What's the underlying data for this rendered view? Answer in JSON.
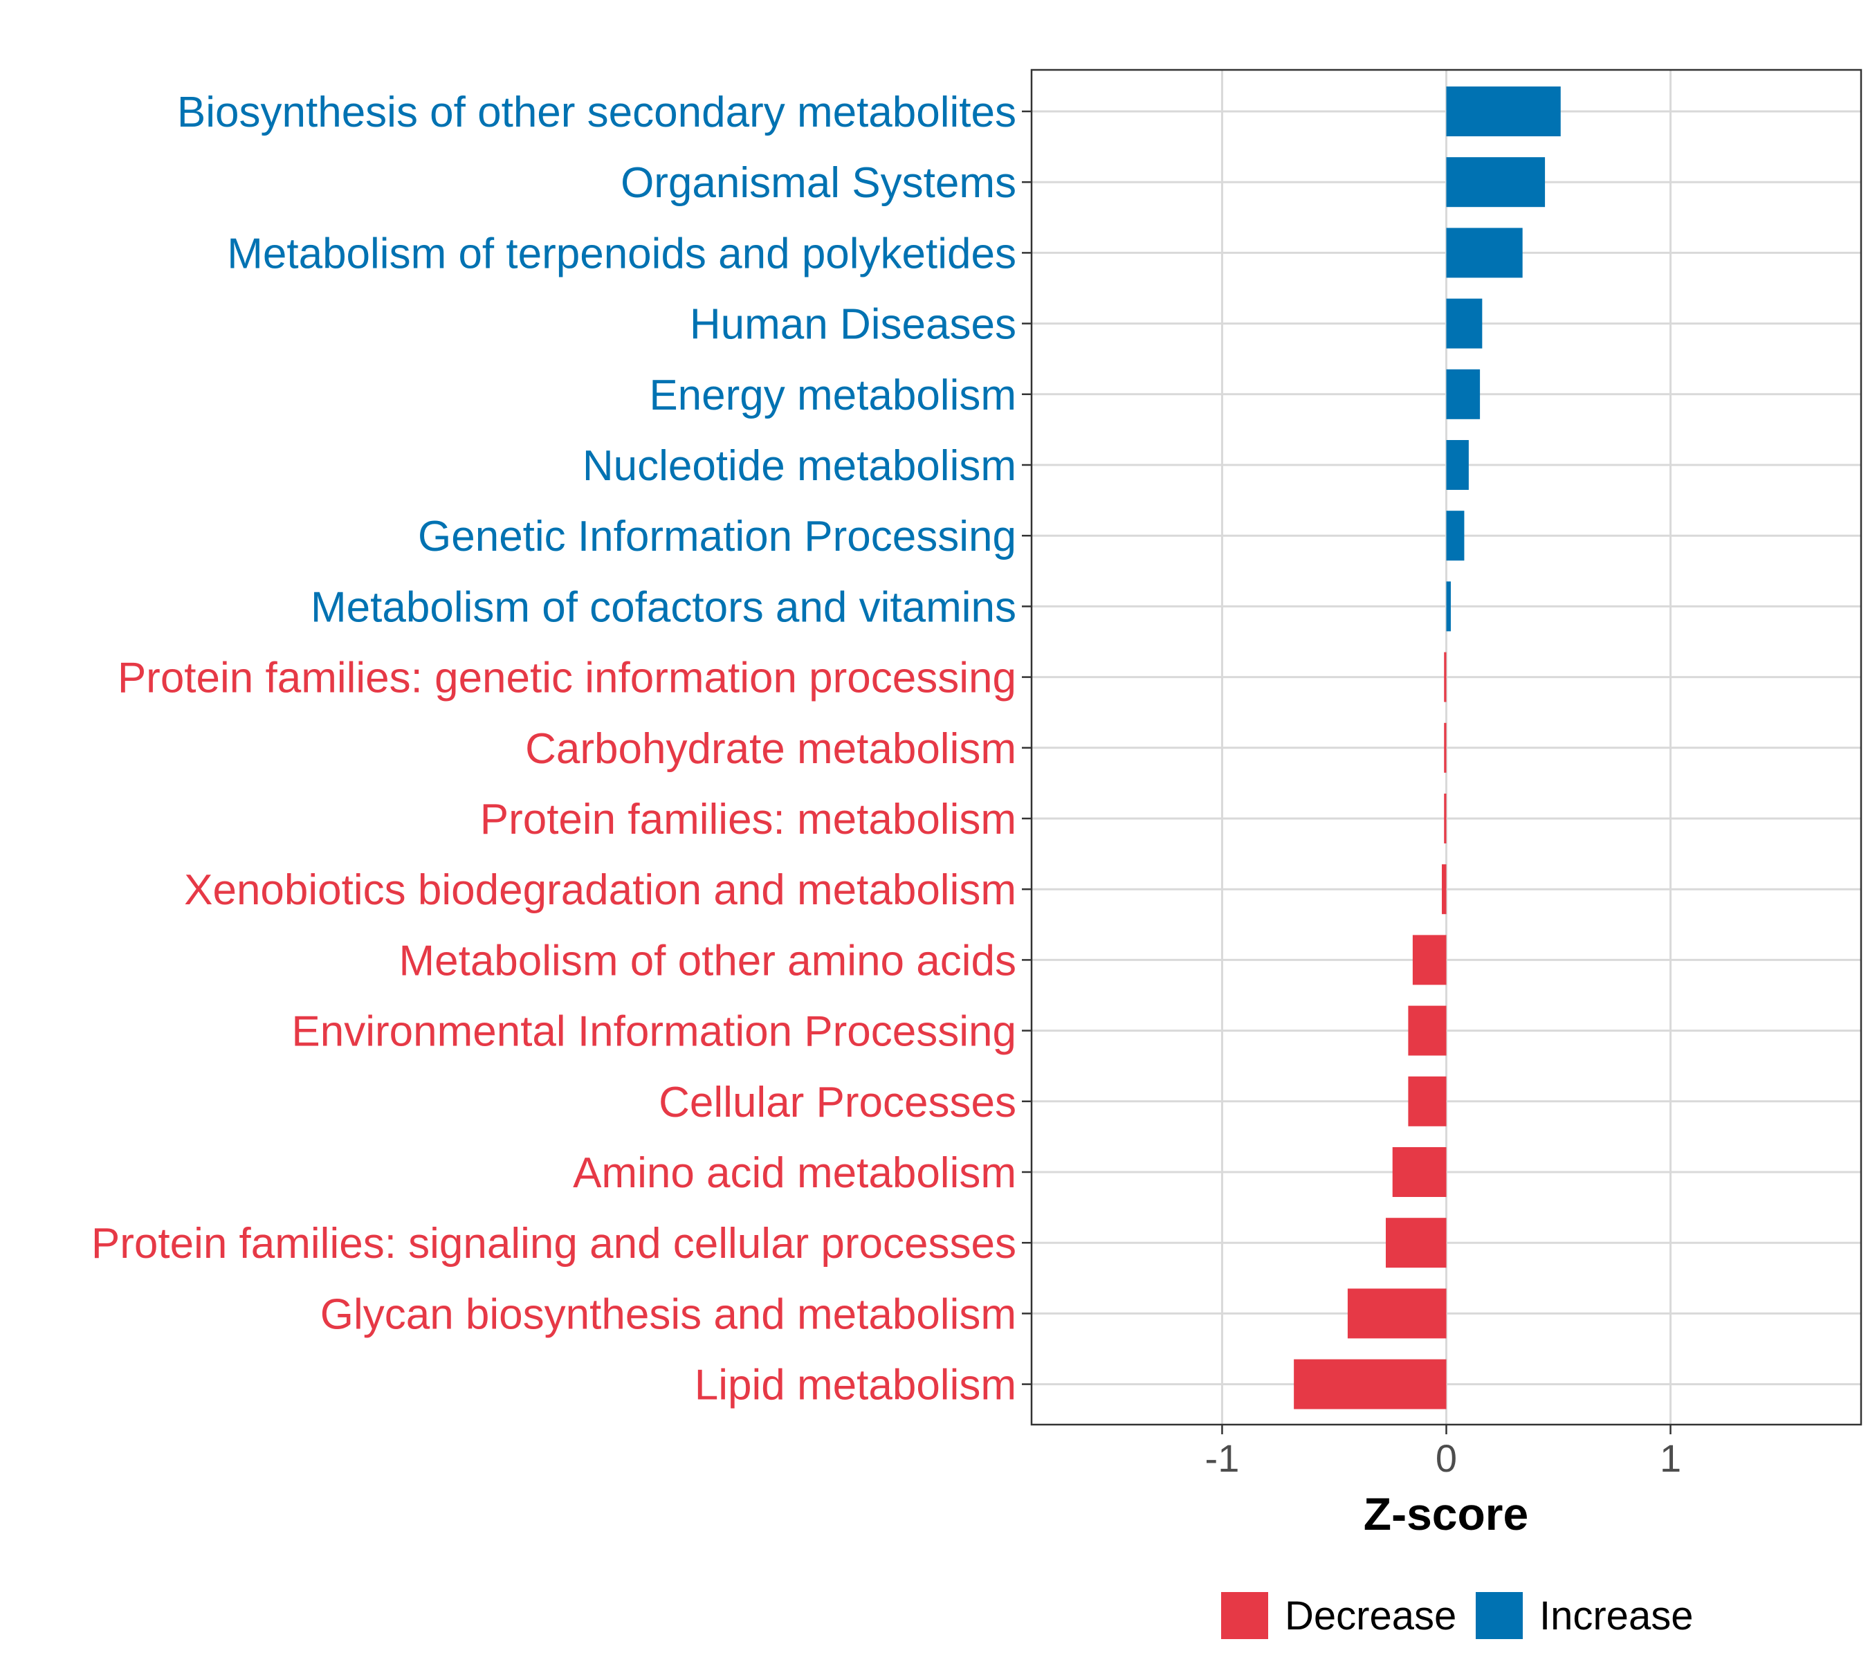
{
  "colors": {
    "decrease": "#e63946",
    "increase": "#0072b2",
    "grid": "#d9d9d9",
    "axis_text": "#4d4d4d",
    "frame": "#333333"
  },
  "chart_data": {
    "type": "bar",
    "orientation": "horizontal",
    "title": "",
    "xlabel": "Z-score",
    "ylabel": "",
    "xlim": [
      -1.85,
      1.85
    ],
    "xticks": [
      -1,
      0,
      1
    ],
    "xtick_labels": [
      "-1",
      "0",
      "1"
    ],
    "grid": true,
    "legend": {
      "position": "bottom",
      "entries": [
        {
          "key": "decrease",
          "label": "Decrease"
        },
        {
          "key": "increase",
          "label": "Increase"
        }
      ]
    },
    "categories": [
      "Biosynthesis of other secondary metabolites",
      "Organismal Systems",
      "Metabolism of terpenoids and polyketides",
      "Human Diseases",
      "Energy metabolism",
      "Nucleotide metabolism",
      "Genetic Information Processing",
      "Metabolism of cofactors and vitamins",
      "Protein families: genetic information processing",
      "Carbohydrate metabolism",
      "Protein families: metabolism",
      "Xenobiotics biodegradation and metabolism",
      "Metabolism of other amino acids",
      "Environmental Information Processing",
      "Cellular Processes",
      "Amino acid metabolism",
      "Protein families: signaling and cellular processes",
      "Glycan biosynthesis and metabolism",
      "Lipid metabolism"
    ],
    "values": [
      0.51,
      0.44,
      0.34,
      0.16,
      0.15,
      0.1,
      0.08,
      0.02,
      -0.01,
      -0.01,
      -0.01,
      -0.02,
      -0.15,
      -0.17,
      -0.17,
      -0.24,
      -0.27,
      -0.44,
      -0.68
    ],
    "groups": [
      "increase",
      "increase",
      "increase",
      "increase",
      "increase",
      "increase",
      "increase",
      "increase",
      "decrease",
      "decrease",
      "decrease",
      "decrease",
      "decrease",
      "decrease",
      "decrease",
      "decrease",
      "decrease",
      "decrease",
      "decrease"
    ]
  }
}
